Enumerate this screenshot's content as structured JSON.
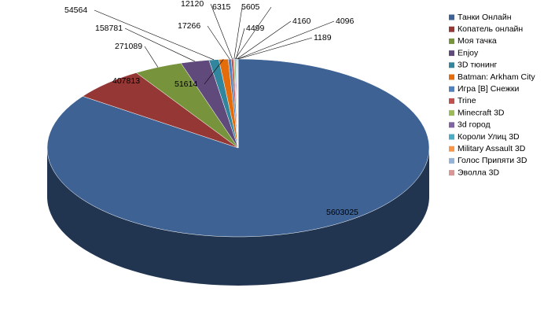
{
  "chart_data": {
    "type": "pie",
    "legend": "right",
    "categories": [
      "Танки Онлайн",
      "Копатель онлайн",
      "Моя тачка",
      "Enjoy",
      "3D тюнинг",
      "Batman: Arkham City",
      "Игра [В] Снежки",
      "Trine",
      "Minecraft 3D",
      "3d город",
      "Короли Улиц 3D",
      "Military Assault 3D",
      "Голос Припяти 3D",
      "Эволла 3D"
    ],
    "values": [
      5603025,
      407813,
      271089,
      158781,
      54564,
      51614,
      17266,
      12120,
      6315,
      5605,
      4499,
      4160,
      4096,
      1189
    ],
    "colors": [
      "#3d6293",
      "#953735",
      "#77933c",
      "#604a7b",
      "#31859c",
      "#e46c0a",
      "#4f81bd",
      "#c0504d",
      "#9bbb59",
      "#8064a2",
      "#4bacc6",
      "#f79646",
      "#95b3d7",
      "#d99694"
    ]
  }
}
